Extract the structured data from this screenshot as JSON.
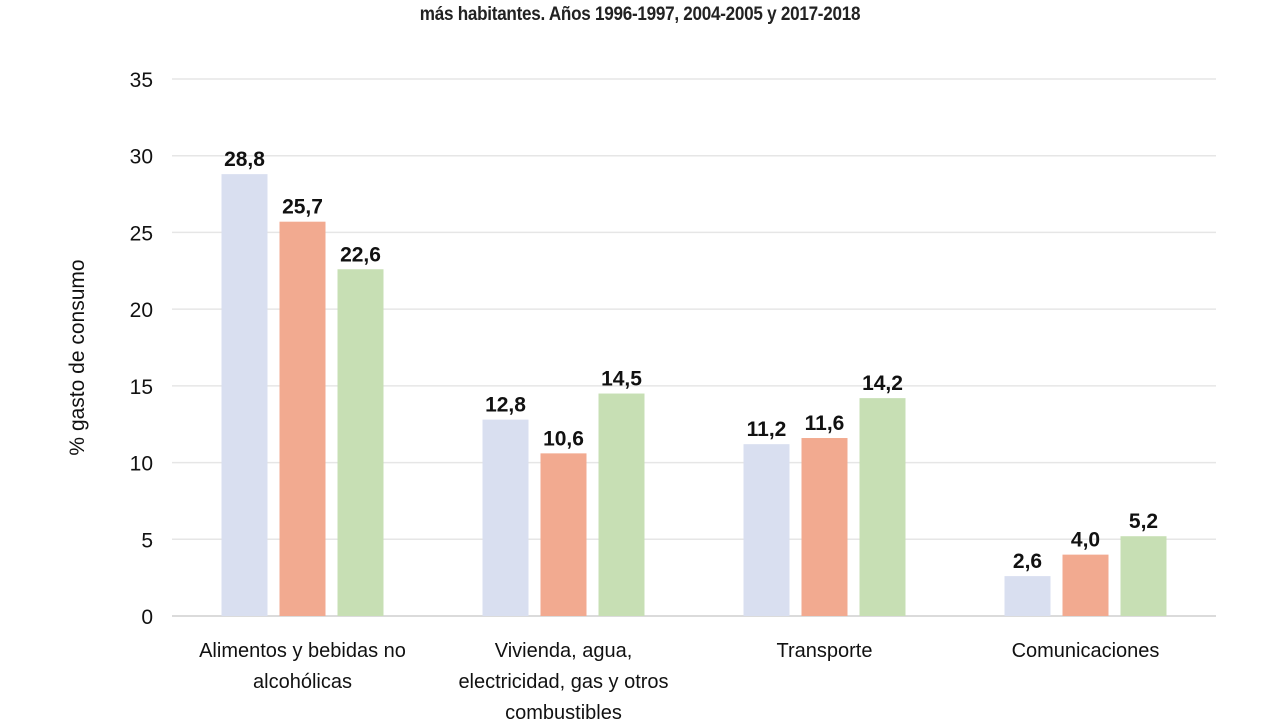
{
  "chart_data": {
    "type": "bar",
    "title": "más habitantes. Años 1996-1997, 2004-2005 y 2017-2018",
    "xlabel": "",
    "ylabel": "% gasto de consumo",
    "ylim": [
      0,
      35
    ],
    "yticks": [
      0,
      5,
      10,
      15,
      20,
      25,
      30,
      35
    ],
    "grid": true,
    "categories": [
      [
        "Alimentos y bebidas no",
        "alcohólicas"
      ],
      [
        "Vivienda, agua,",
        "electricidad, gas y otros",
        "combustibles"
      ],
      [
        "Transporte"
      ],
      [
        "Comunicaciones"
      ]
    ],
    "series": [
      {
        "values": [
          28.8,
          12.8,
          11.2,
          2.6
        ],
        "labels": [
          "28,8",
          "12,8",
          "11,2",
          "2,6"
        ],
        "color": "#d9dff0"
      },
      {
        "values": [
          25.7,
          10.6,
          11.6,
          4.0
        ],
        "labels": [
          "25,7",
          "10,6",
          "11,6",
          "4,0"
        ],
        "color": "#f2aa90"
      },
      {
        "values": [
          22.6,
          14.5,
          14.2,
          5.2
        ],
        "labels": [
          "22,6",
          "14,5",
          "14,2",
          "5,2"
        ],
        "color": "#c7dfb4"
      }
    ]
  }
}
